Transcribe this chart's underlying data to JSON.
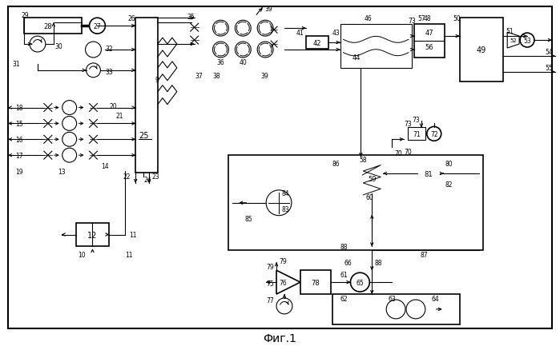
{
  "title": "Фиг.1",
  "bg_color": "#ffffff",
  "figsize": [
    6.99,
    4.39
  ],
  "dpi": 100
}
